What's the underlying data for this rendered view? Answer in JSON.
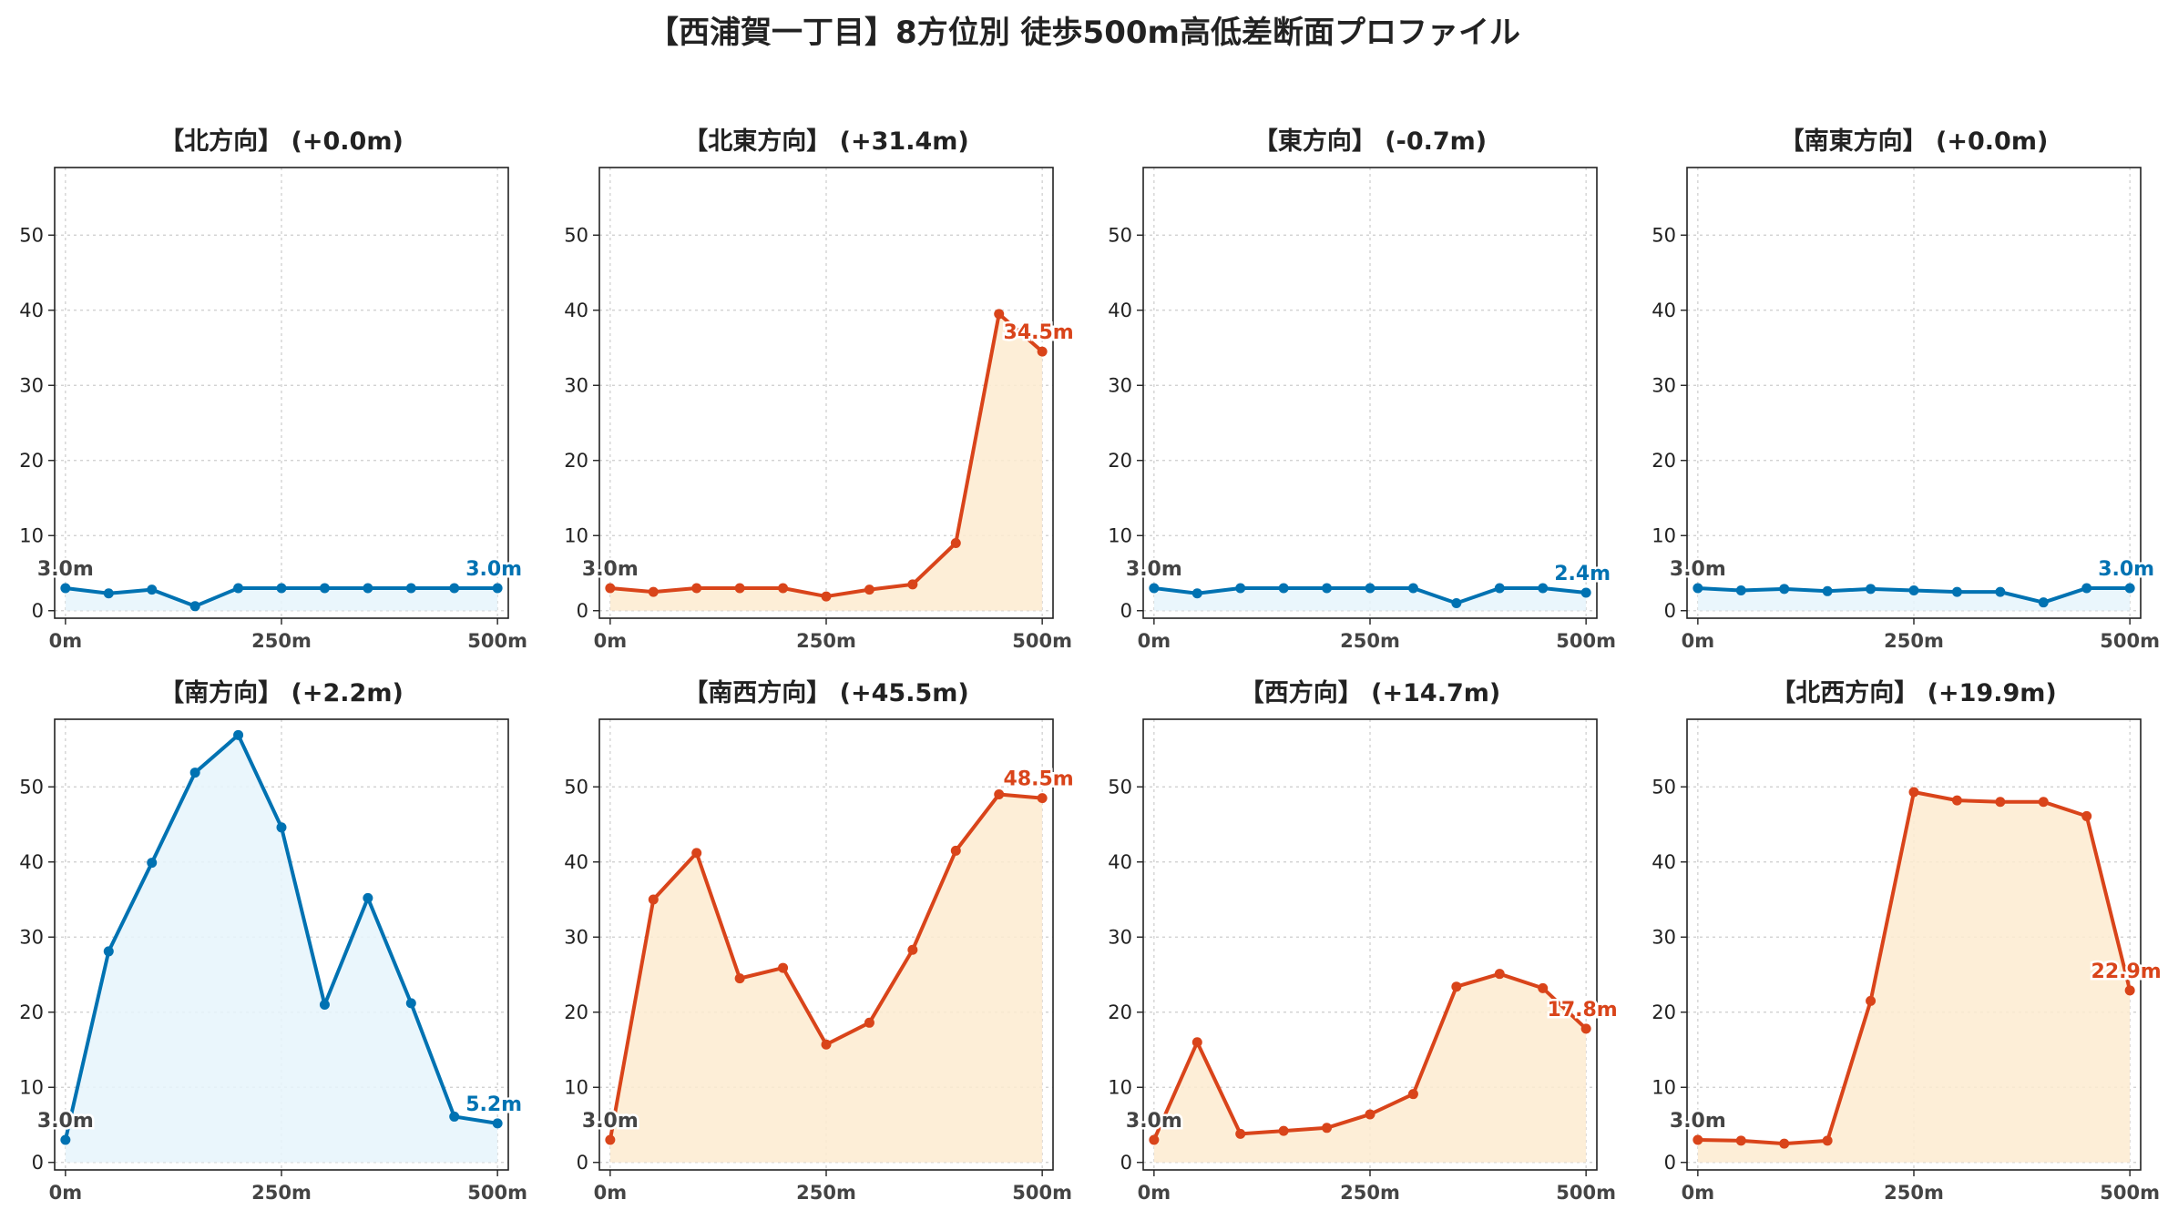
{
  "title": "【西浦賀一丁目】8方位別 徒歩500m高低差断面プロファイル",
  "colors": {
    "flat_line": "#0072b2",
    "flat_fill": "#e6f4fb",
    "rise_line": "#d9441a",
    "rise_fill": "#fdebd0",
    "start_label": "#444444",
    "grid": "#cccccc",
    "axis": "#222222"
  },
  "chart_data": [
    {
      "type": "area",
      "title": "【北方向】 (+0.0m)",
      "x": [
        0,
        50,
        100,
        150,
        200,
        250,
        300,
        350,
        400,
        450,
        500
      ],
      "y": [
        3.0,
        2.3,
        2.8,
        0.6,
        3.0,
        3.0,
        3.0,
        3.0,
        3.0,
        3.0,
        3.0
      ],
      "start_label": "3.0m",
      "end_label": "3.0m",
      "style": "flat",
      "xticks": [
        "0m",
        "250m",
        "500m"
      ],
      "yticks": [
        0,
        10,
        20,
        30,
        40,
        50
      ],
      "ylim": [
        -1,
        59
      ],
      "grid": true
    },
    {
      "type": "area",
      "title": "【北東方向】 (+31.4m)",
      "x": [
        0,
        50,
        100,
        150,
        200,
        250,
        300,
        350,
        400,
        450,
        500
      ],
      "y": [
        3.0,
        2.5,
        3.0,
        3.0,
        3.0,
        1.9,
        2.8,
        3.5,
        9.0,
        39.5,
        34.5
      ],
      "start_label": "3.0m",
      "end_label": "34.5m",
      "style": "rise",
      "xticks": [
        "0m",
        "250m",
        "500m"
      ],
      "yticks": [
        0,
        10,
        20,
        30,
        40,
        50
      ],
      "ylim": [
        -1,
        59
      ],
      "grid": true
    },
    {
      "type": "area",
      "title": "【東方向】 (-0.7m)",
      "x": [
        0,
        50,
        100,
        150,
        200,
        250,
        300,
        350,
        400,
        450,
        500
      ],
      "y": [
        3.0,
        2.3,
        3.0,
        3.0,
        3.0,
        3.0,
        3.0,
        1.0,
        3.0,
        3.0,
        2.4
      ],
      "start_label": "3.0m",
      "end_label": "2.4m",
      "style": "flat",
      "xticks": [
        "0m",
        "250m",
        "500m"
      ],
      "yticks": [
        0,
        10,
        20,
        30,
        40,
        50
      ],
      "ylim": [
        -1,
        59
      ],
      "grid": true
    },
    {
      "type": "area",
      "title": "【南東方向】 (+0.0m)",
      "x": [
        0,
        50,
        100,
        150,
        200,
        250,
        300,
        350,
        400,
        450,
        500
      ],
      "y": [
        3.0,
        2.7,
        2.9,
        2.6,
        2.9,
        2.7,
        2.5,
        2.5,
        1.1,
        3.0,
        3.0
      ],
      "start_label": "3.0m",
      "end_label": "3.0m",
      "style": "flat",
      "xticks": [
        "0m",
        "250m",
        "500m"
      ],
      "yticks": [
        0,
        10,
        20,
        30,
        40,
        50
      ],
      "ylim": [
        -1,
        59
      ],
      "grid": true
    },
    {
      "type": "area",
      "title": "【南方向】 (+2.2m)",
      "x": [
        0,
        50,
        100,
        150,
        200,
        250,
        300,
        350,
        400,
        450,
        500
      ],
      "y": [
        3.0,
        28.1,
        39.9,
        51.9,
        56.9,
        44.6,
        21.0,
        35.2,
        21.2,
        6.1,
        5.2
      ],
      "start_label": "3.0m",
      "end_label": "5.2m",
      "style": "flat",
      "xticks": [
        "0m",
        "250m",
        "500m"
      ],
      "yticks": [
        0,
        10,
        20,
        30,
        40,
        50
      ],
      "ylim": [
        -1,
        59
      ],
      "grid": true
    },
    {
      "type": "area",
      "title": "【南西方向】 (+45.5m)",
      "x": [
        0,
        50,
        100,
        150,
        200,
        250,
        300,
        350,
        400,
        450,
        500
      ],
      "y": [
        3.0,
        35.0,
        41.2,
        24.5,
        25.9,
        15.7,
        18.6,
        28.3,
        41.5,
        49.0,
        48.5
      ],
      "start_label": "3.0m",
      "end_label": "48.5m",
      "style": "rise",
      "xticks": [
        "0m",
        "250m",
        "500m"
      ],
      "yticks": [
        0,
        10,
        20,
        30,
        40,
        50
      ],
      "ylim": [
        -1,
        59
      ],
      "grid": true
    },
    {
      "type": "area",
      "title": "【西方向】 (+14.7m)",
      "x": [
        0,
        50,
        100,
        150,
        200,
        250,
        300,
        350,
        400,
        450,
        500
      ],
      "y": [
        3.0,
        16.0,
        3.8,
        4.2,
        4.6,
        6.4,
        9.1,
        23.4,
        25.1,
        23.2,
        17.8
      ],
      "start_label": "3.0m",
      "end_label": "17.8m",
      "style": "rise",
      "xticks": [
        "0m",
        "250m",
        "500m"
      ],
      "yticks": [
        0,
        10,
        20,
        30,
        40,
        50
      ],
      "ylim": [
        -1,
        59
      ],
      "grid": true
    },
    {
      "type": "area",
      "title": "【北西方向】 (+19.9m)",
      "x": [
        0,
        50,
        100,
        150,
        200,
        250,
        300,
        350,
        400,
        450,
        500
      ],
      "y": [
        3.0,
        2.9,
        2.5,
        2.9,
        21.5,
        49.3,
        48.2,
        48.0,
        48.0,
        46.1,
        22.9
      ],
      "start_label": "3.0m",
      "end_label": "22.9m",
      "style": "rise",
      "xticks": [
        "0m",
        "250m",
        "500m"
      ],
      "yticks": [
        0,
        10,
        20,
        30,
        40,
        50
      ],
      "ylim": [
        -1,
        59
      ],
      "grid": true
    }
  ]
}
